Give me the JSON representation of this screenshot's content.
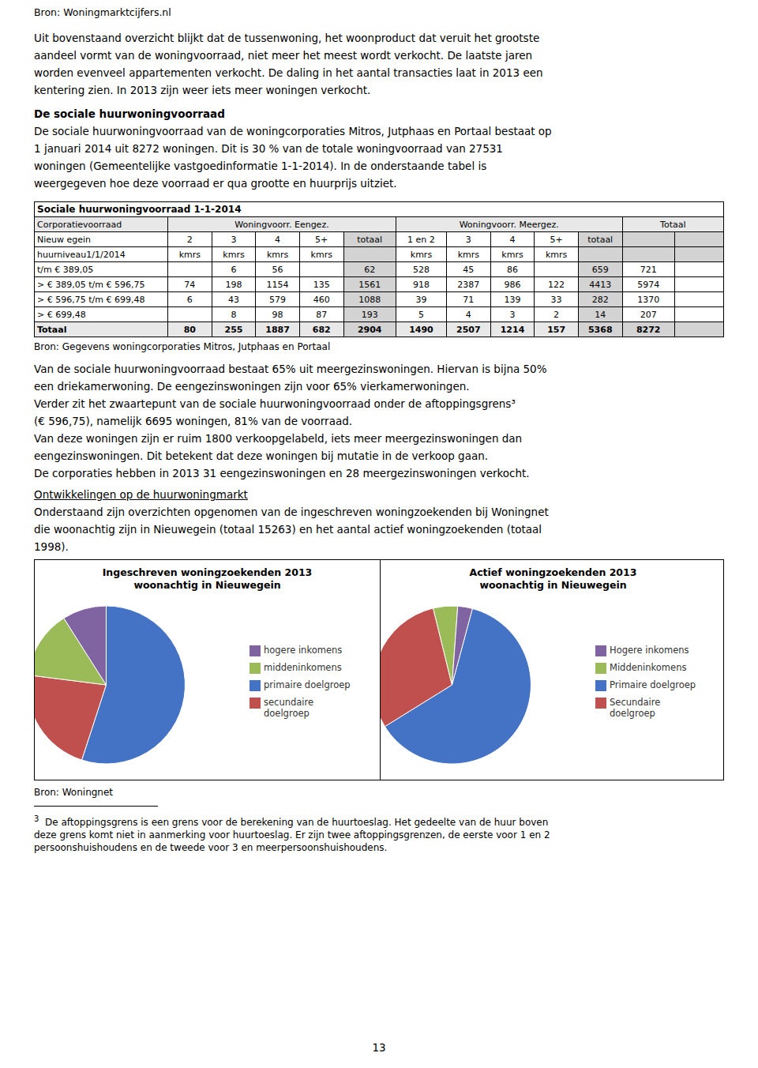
{
  "chart_data": [
    {
      "type": "pie",
      "title": "Ingeschreven woningzoekenden 2013\nwoonachtig in Nieuwegein",
      "categories": [
        "primaire doelgroep",
        "secundaire\ndoelgroep",
        "middeninkomens",
        "hogere inkomens"
      ],
      "values": [
        55,
        22,
        14,
        9
      ],
      "colors": [
        "#4472C4",
        "#C0504D",
        "#9BBB59",
        "#8064A2"
      ],
      "legend": "right"
    },
    {
      "type": "pie",
      "title": "Actief woningzoekenden 2013\nwoonachtig in Nieuwegein",
      "categories": [
        "Primaire doelgroep",
        "Secundaire\ndoelgroep",
        "Middeninkomens",
        "Hogere inkomens"
      ],
      "values": [
        62,
        30,
        5,
        3
      ],
      "colors": [
        "#4472C4",
        "#C0504D",
        "#9BBB59",
        "#8064A2"
      ],
      "legend": "right"
    }
  ],
  "annotations": {
    "page_header": "Bron: Woningmarktcijfers.nl",
    "para1": "Uit bovenstaand overzicht blijkt dat de tussenwoning, het woonproduct dat veruit het grootste\naandeel vormt van de woningvoorraad, niet meer het meest wordt verkocht. De laatste jaren\nworden evenveel appartementen verkocht. De daling in het aantal transacties laat in 2013 een\nkentering zien. In 2013 zijn weer iets meer woningen verkocht.",
    "section_title": "De sociale huurwoningvoorraad",
    "para2": "De sociale huurwoningvoorraad van de woningcorporaties Mitros, Jutphaas en Portaal bestaat op\n1 januari 2014 uit 8272 woningen. Dit is 30 % van de totale woningvoorraad van 27531\nwoningen (Gemeentelijke vastgoedinformatie 1-1-2014). In de onderstaande tabel is\nweergegeven hoe deze voorraad er qua grootte en huurprijs uitziet.",
    "para3": "Van de sociale huurwoningvoorraad bestaat 65% uit meergezinswoningen. Hiervan is bijna 50%\neen driekamerwoning. De eengezinswoningen zijn voor 65% vierkamerwoningen.\nVerder zit het zwaartepunt van de sociale huurwoningvoorraad onder de aftoppingsgrens³\n(€ 596,75), namelijk 6695 woningen, 81% van de voorraad.\nVan deze woningen zijn er ruim 1800 verkoopgelabeld, iets meer meergezinswoningen dan\neengezinswoningen. Dit betekent dat deze woningen bij mutatie in de verkoop gaan.\nDe corporaties hebben in 2013 31 eengezinswoningen en 28 meergezinswoningen verkocht.",
    "section_title2": "Ontwikkelingen op de huurwoningmarkt",
    "para4": "Onderstaand zijn overzichten opgenomen van de ingeschreven woningzoekenden bij Woningnet\ndie woonachtig zijn in Nieuwegein (totaal 15263) en het aantal actief woningzoekenden (totaal\n1998).",
    "chart_source": "Bron: Woningnet",
    "footnote_num": "3",
    "footnote_text": "  De aftoppingsgrens is een grens voor de berekening van de huurtoeslag. Het gedeelte van de huur boven\ndeze grens komt niet in aanmerking voor huurtoeslag. Er zijn twee aftoppingsgrenzen, de eerste voor 1 en 2\npersoonshuishoudens en de tweede voor 3 en meerpersoonshuishoudens.",
    "page_number": "13"
  },
  "table": {
    "title": "Sociale huurwoningvoorraad 1-1-2014",
    "header_row1": [
      "Corporatievoorraad",
      "Woningvoorr. Eengez.",
      "Woningvoorr. Meergez.",
      "Totaal"
    ],
    "header_row2": [
      "Nieuw egein",
      "2",
      "3",
      "4",
      "5+",
      "totaal",
      "1 en 2",
      "3",
      "4",
      "5+",
      "totaal"
    ],
    "header_row3": [
      "huurniveau1/1/2014",
      "kmrs",
      "kmrs",
      "kmrs",
      "kmrs",
      null,
      "kmrs",
      "kmrs",
      "kmrs",
      "kmrs"
    ],
    "rows": [
      [
        "t/m € 389,05",
        null,
        "6",
        "56",
        null,
        "62",
        "528",
        "45",
        "86",
        null,
        "659",
        "721"
      ],
      [
        "> € 389,05 t/m € 596,75",
        "74",
        "198",
        "1154",
        "135",
        "1561",
        "918",
        "2387",
        "986",
        "122",
        "4413",
        "5974"
      ],
      [
        "> € 596,75 t/m € 699,48",
        "6",
        "43",
        "579",
        "460",
        "1088",
        "39",
        "71",
        "139",
        "33",
        "282",
        "1370"
      ],
      [
        "> € 699,48",
        null,
        "8",
        "98",
        "87",
        "193",
        "5",
        "4",
        "3",
        "2",
        "14",
        "207"
      ],
      [
        "Totaal",
        "80",
        "255",
        "1887",
        "682",
        "2904",
        "1490",
        "2507",
        "1214",
        "157",
        "5368",
        "8272"
      ]
    ],
    "source": "Bron: Gegevens woningcorporaties Mitros, Jutphaas en Portaal"
  }
}
